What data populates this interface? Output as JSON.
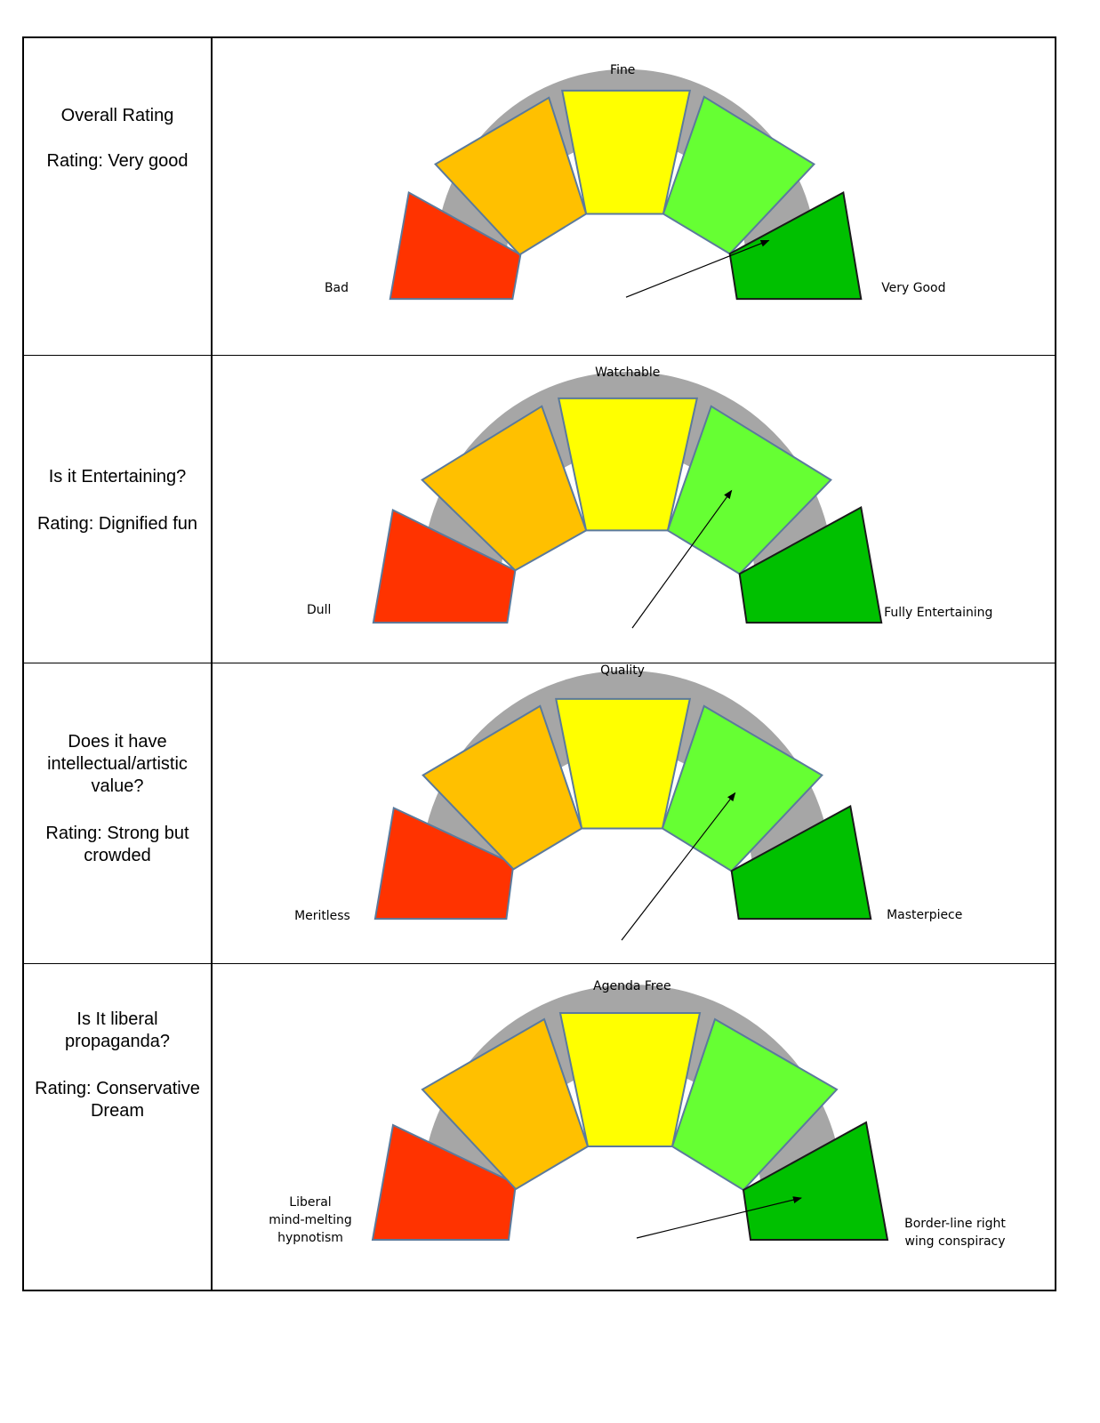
{
  "colors": {
    "bad": "#ff3300",
    "poor": "#ffc000",
    "mid": "#ffff00",
    "good": "#66ff33",
    "best": "#00c000",
    "track": "#a6a6a6",
    "outline": "#5b7a9c"
  },
  "rows": [
    {
      "question": "Overall Rating",
      "rating": "Rating: Very good",
      "labels": {
        "left": "Bad",
        "top": "Fine",
        "right": "Very Good"
      }
    },
    {
      "question": "Is it Entertaining?",
      "rating": "Rating: Dignified fun",
      "labels": {
        "left": "Dull",
        "top": "Watchable",
        "right": "Fully Entertaining"
      }
    },
    {
      "question": "Does it have intellectual/artistic value?",
      "rating": "Rating: Strong but crowded",
      "labels": {
        "left": "Meritless",
        "top": "Quality",
        "right": "Masterpiece"
      }
    },
    {
      "question": "Is It liberal propaganda?",
      "rating": "Rating: Conservative Dream",
      "labels": {
        "left": [
          "Liberal",
          "mind-melting",
          "hypnotism"
        ],
        "top": "Agenda Free",
        "right": [
          "Border-line right",
          "wing conspiracy"
        ]
      }
    }
  ]
}
